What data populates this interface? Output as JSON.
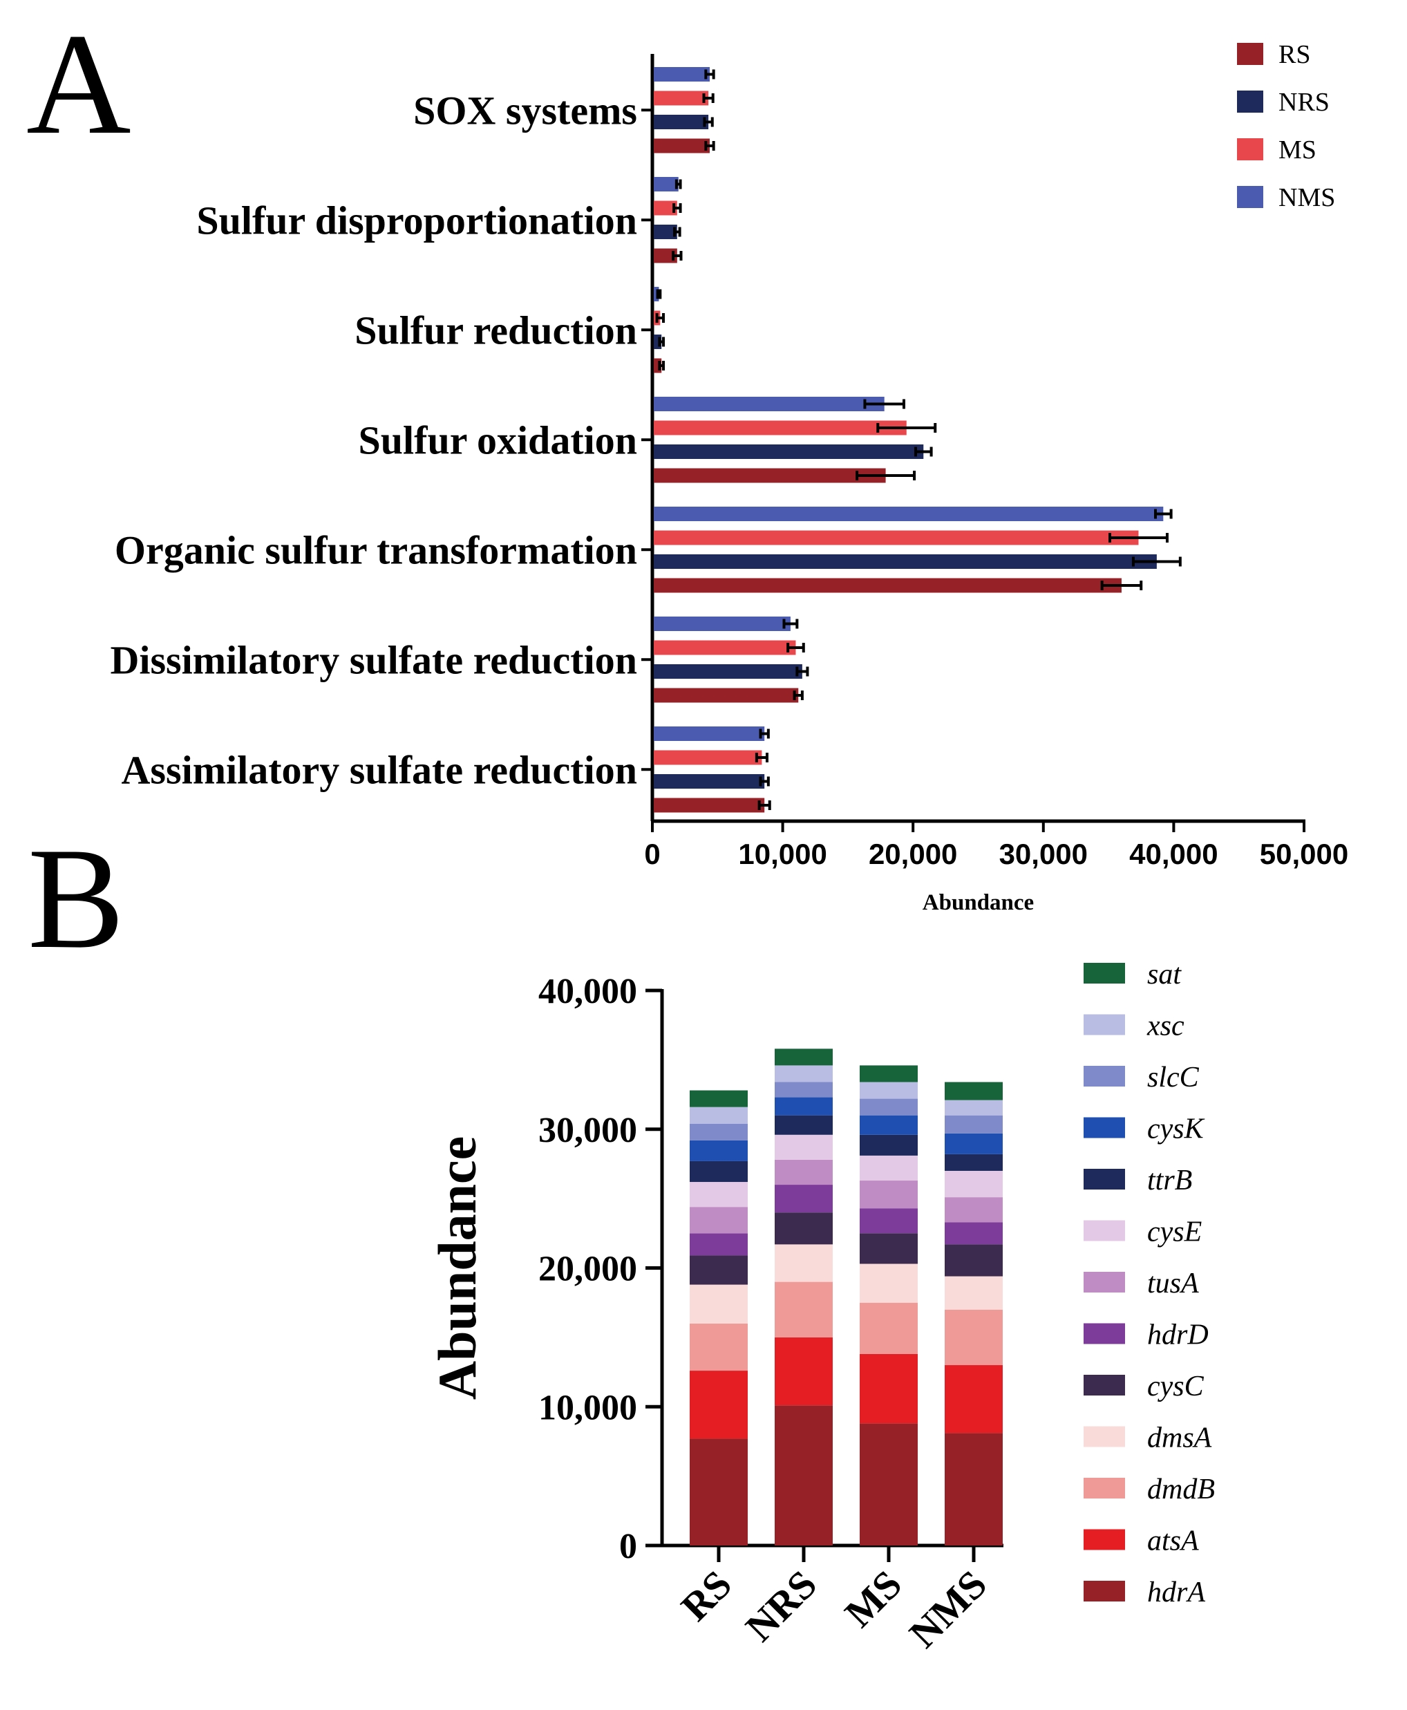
{
  "panels": {
    "a_label": "A",
    "b_label": "B"
  },
  "colors": {
    "RS": "#962228",
    "NRS": "#1f2a5c",
    "MS": "#e8474c",
    "NMS": "#4a5bb0",
    "axis": "#000000",
    "error": "#000000"
  },
  "chart_data": [
    {
      "id": "A",
      "type": "bar",
      "orientation": "horizontal",
      "title": "",
      "xlabel": "Abundance",
      "ylabel": "",
      "xlim": [
        0,
        50000
      ],
      "x_ticks": [
        0,
        10000,
        20000,
        30000,
        40000,
        50000
      ],
      "x_tick_labels": [
        "0",
        "10,000",
        "20,000",
        "30,000",
        "40,000",
        "50,000"
      ],
      "categories": [
        "SOX systems",
        "Sulfur disproportionation",
        "Sulfur reduction",
        "Sulfur oxidation",
        "Organic sulfur transformation",
        "Dissimilatory sulfate reduction",
        "Assimilatory sulfate reduction"
      ],
      "legend": [
        "RS",
        "NRS",
        "MS",
        "NMS"
      ],
      "legend_position": "top-right",
      "bar_order_top_to_bottom": [
        "NMS",
        "MS",
        "NRS",
        "RS"
      ],
      "series": [
        {
          "name": "NMS",
          "values": [
            4400,
            2000,
            500,
            17800,
            39200,
            10600,
            8600
          ],
          "errors": [
            300,
            150,
            100,
            1500,
            600,
            500,
            300
          ]
        },
        {
          "name": "MS",
          "values": [
            4300,
            1900,
            600,
            19500,
            37300,
            11000,
            8400
          ],
          "errors": [
            350,
            250,
            250,
            2200,
            2200,
            600,
            400
          ]
        },
        {
          "name": "NRS",
          "values": [
            4300,
            1900,
            700,
            20800,
            38700,
            11500,
            8600
          ],
          "errors": [
            300,
            200,
            150,
            600,
            1800,
            400,
            300
          ]
        },
        {
          "name": "RS",
          "values": [
            4400,
            1900,
            700,
            17900,
            36000,
            11200,
            8600
          ],
          "errors": [
            300,
            300,
            150,
            2200,
            1500,
            300,
            400
          ]
        }
      ]
    },
    {
      "id": "B",
      "type": "bar",
      "stacked": true,
      "title": "",
      "xlabel": "",
      "ylabel": "Abundance",
      "ylim": [
        0,
        40000
      ],
      "y_ticks": [
        0,
        10000,
        20000,
        30000,
        40000
      ],
      "y_tick_labels": [
        "0",
        "10,000",
        "20,000",
        "30,000",
        "40,000"
      ],
      "categories": [
        "RS",
        "NRS",
        "MS",
        "NMS"
      ],
      "legend_position": "right",
      "series": [
        {
          "name": "hdrA",
          "color": "#962228",
          "values": [
            7700,
            10100,
            8800,
            8100
          ]
        },
        {
          "name": "atsA",
          "color": "#e41e23",
          "values": [
            4900,
            4900,
            5000,
            4900
          ]
        },
        {
          "name": "dmdB",
          "color": "#f09a98",
          "values": [
            3400,
            4000,
            3700,
            4000
          ]
        },
        {
          "name": "dmsA",
          "color": "#f9dcda",
          "values": [
            2800,
            2700,
            2800,
            2400
          ]
        },
        {
          "name": "cysC",
          "color": "#3d2a4f",
          "values": [
            2100,
            2300,
            2200,
            2300
          ]
        },
        {
          "name": "hdrD",
          "color": "#7e3c9a",
          "values": [
            1600,
            2000,
            1800,
            1600
          ]
        },
        {
          "name": "tusA",
          "color": "#c08cc4",
          "values": [
            1900,
            1800,
            2000,
            1800
          ]
        },
        {
          "name": "cysE",
          "color": "#e4c9e7",
          "values": [
            1800,
            1800,
            1800,
            1900
          ]
        },
        {
          "name": "ttrB",
          "color": "#1e2a5c",
          "values": [
            1500,
            1400,
            1500,
            1200
          ]
        },
        {
          "name": "cysK",
          "color": "#1f4fb0",
          "values": [
            1500,
            1300,
            1400,
            1500
          ]
        },
        {
          "name": "slcC",
          "color": "#7f8acb",
          "values": [
            1200,
            1100,
            1200,
            1300
          ]
        },
        {
          "name": "xsc",
          "color": "#b9bde4",
          "values": [
            1200,
            1200,
            1200,
            1100
          ]
        },
        {
          "name": "sat",
          "color": "#17643a",
          "values": [
            1200,
            1200,
            1200,
            1300
          ]
        }
      ],
      "legend_order_top_to_bottom": [
        "sat",
        "xsc",
        "slcC",
        "cysK",
        "ttrB",
        "cysE",
        "tusA",
        "hdrD",
        "cysC",
        "dmsA",
        "dmdB",
        "atsA",
        "hdrA"
      ]
    }
  ]
}
